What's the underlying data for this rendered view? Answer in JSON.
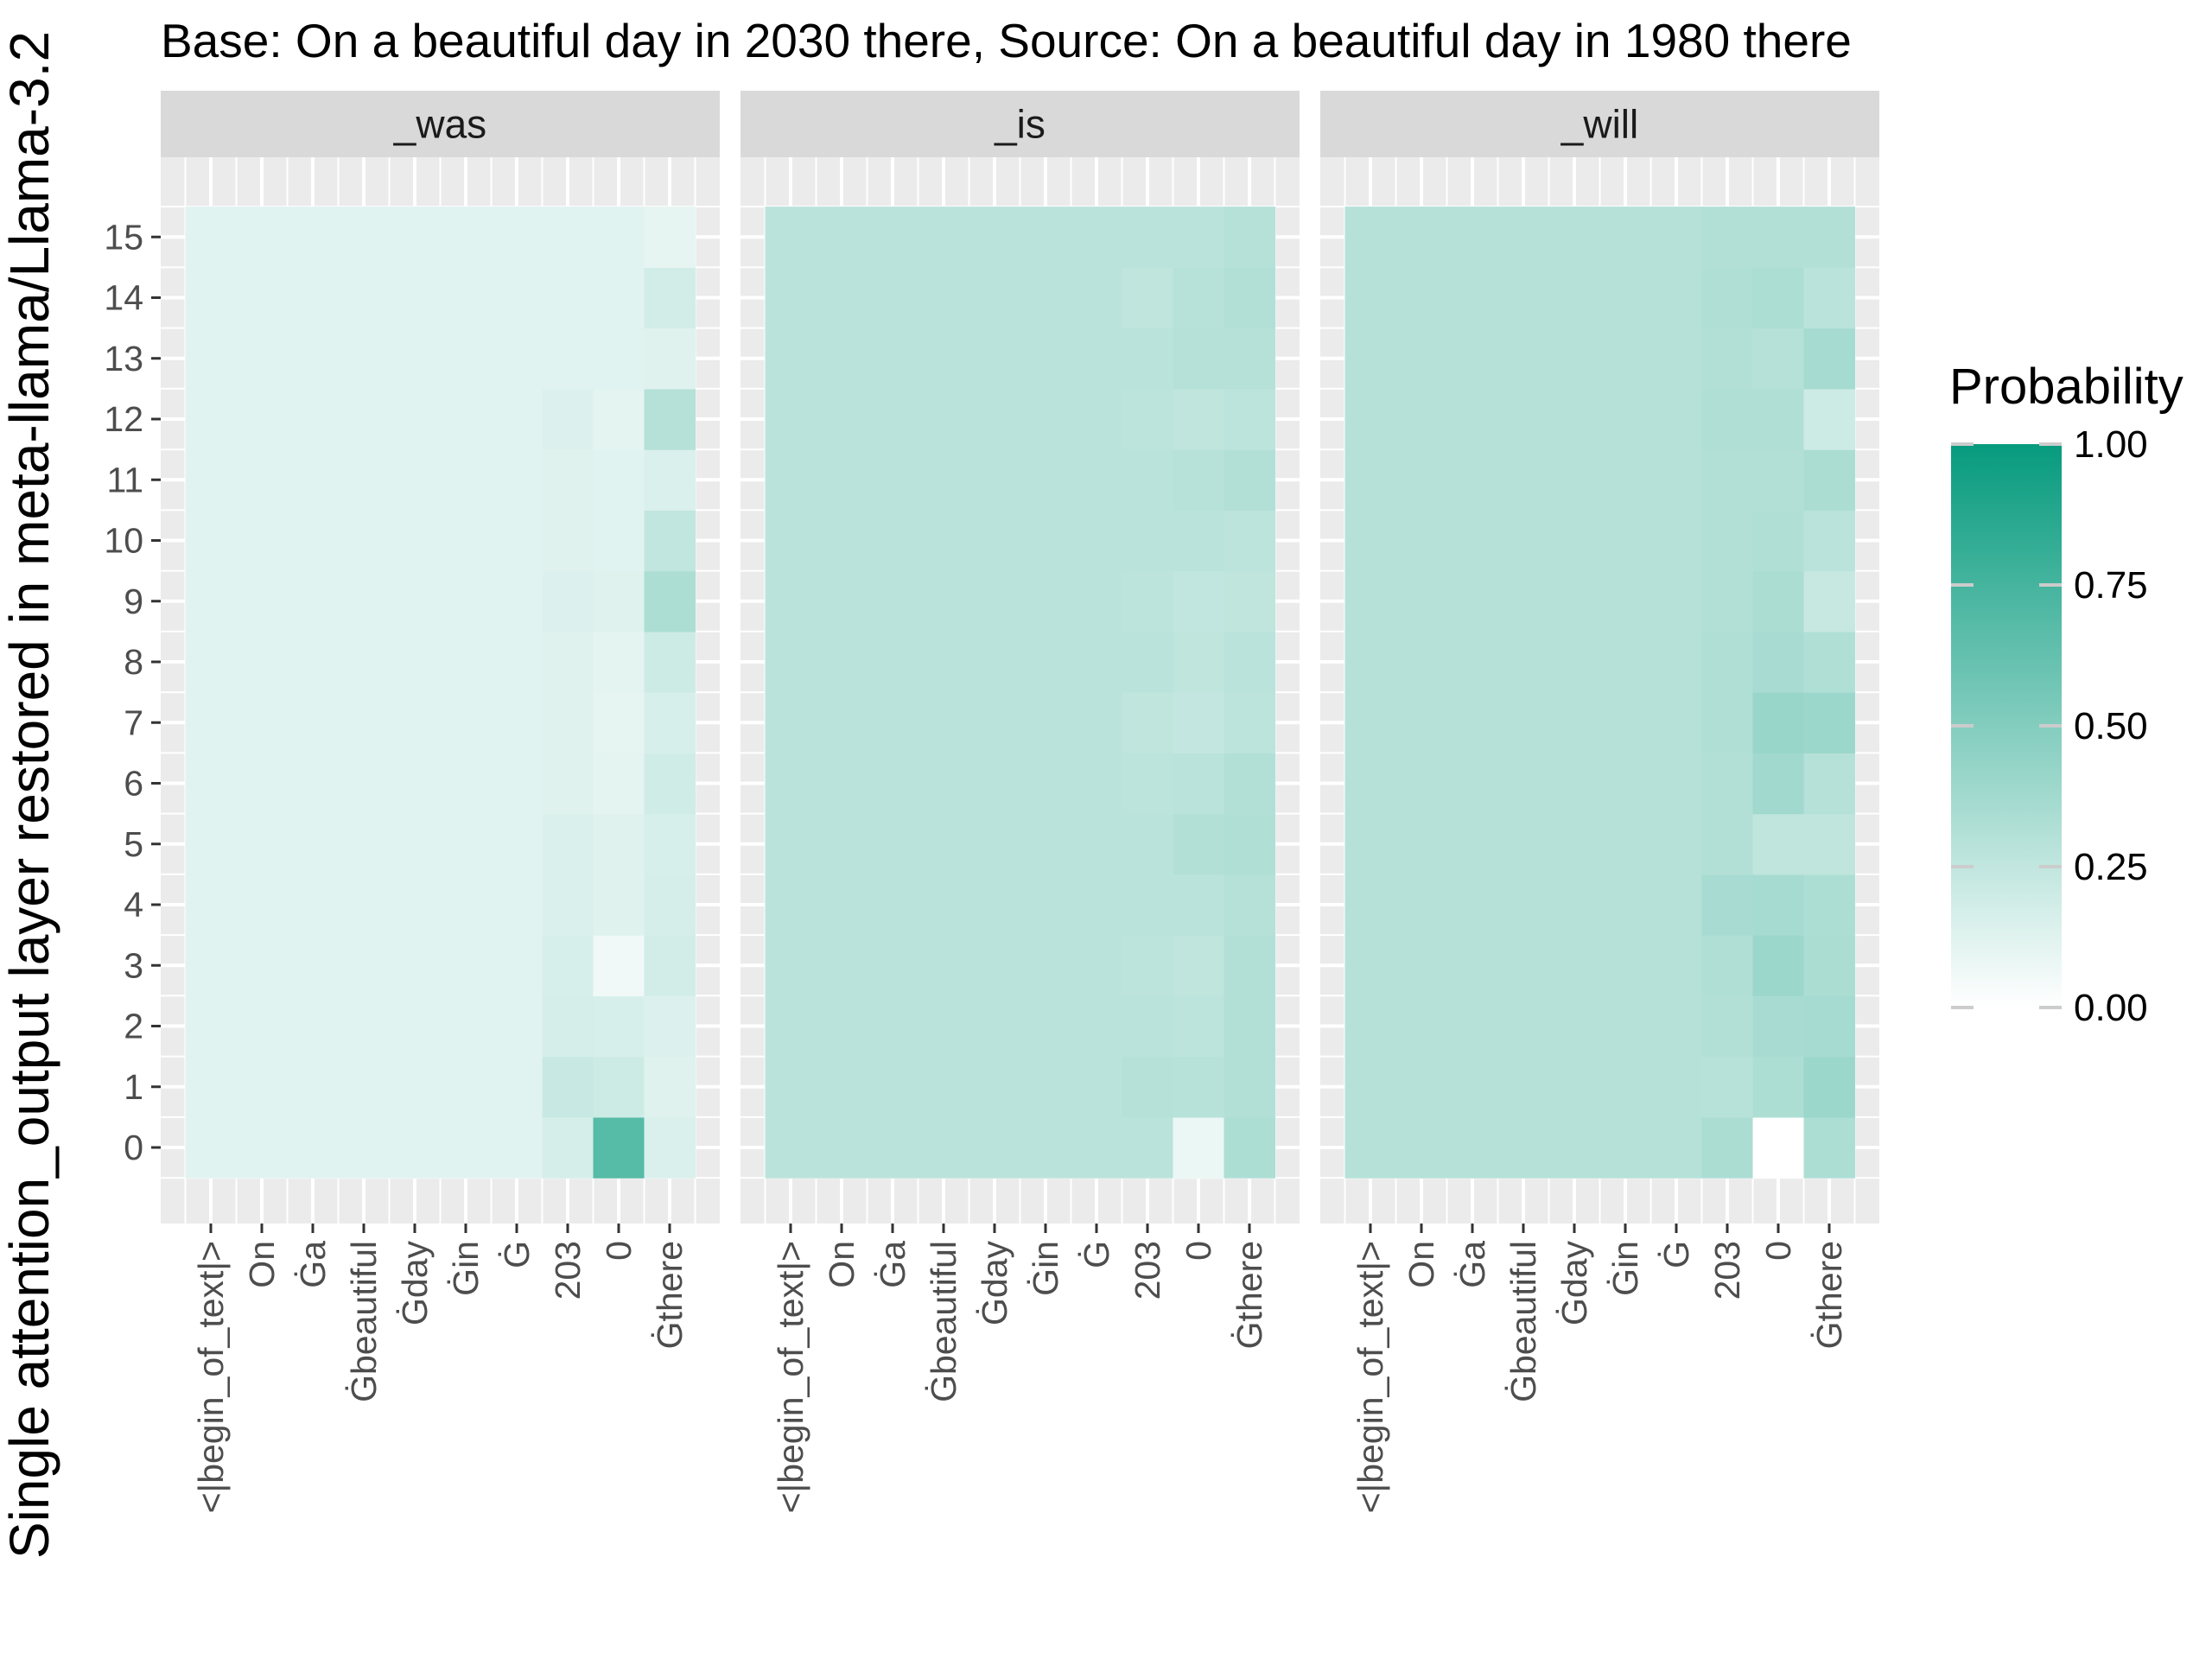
{
  "chart_data": {
    "type": "heatmap",
    "title": "Base: On a beautiful day in 2030 there, Source: On a beautiful day in 1980 there",
    "ylabel": "Single attention_output layer restored in meta-llama/Llama-3.2",
    "xlabel": "",
    "x_categories": [
      "<|begin_of_text|>",
      "On",
      "Ġa",
      "Ġbeautiful",
      "Ġday",
      "Ġin",
      "Ġ",
      "203",
      "0",
      "Ġthere"
    ],
    "y_categories": [
      "0",
      "1",
      "2",
      "3",
      "4",
      "5",
      "6",
      "7",
      "8",
      "9",
      "10",
      "11",
      "12",
      "13",
      "14",
      "15"
    ],
    "facets": [
      {
        "label": "_was",
        "base": 0.12,
        "values_last3": [
          [
            0.17,
            0.68,
            0.15
          ],
          [
            0.22,
            0.2,
            0.13
          ],
          [
            0.17,
            0.16,
            0.14
          ],
          [
            0.16,
            0.06,
            0.18
          ],
          [
            0.15,
            0.13,
            0.17
          ],
          [
            0.15,
            0.13,
            0.16
          ],
          [
            0.13,
            0.11,
            0.19
          ],
          [
            0.13,
            0.1,
            0.16
          ],
          [
            0.13,
            0.11,
            0.2
          ],
          [
            0.14,
            0.13,
            0.33
          ],
          [
            0.13,
            0.12,
            0.25
          ],
          [
            0.13,
            0.12,
            0.15
          ],
          [
            0.14,
            0.11,
            0.3
          ],
          [
            0.12,
            0.12,
            0.13
          ],
          [
            0.12,
            0.12,
            0.18
          ],
          [
            0.12,
            0.12,
            0.1
          ]
        ]
      },
      {
        "label": "_is",
        "base": 0.28,
        "values_last3": [
          [
            0.28,
            0.08,
            0.33
          ],
          [
            0.3,
            0.29,
            0.31
          ],
          [
            0.28,
            0.27,
            0.31
          ],
          [
            0.27,
            0.26,
            0.31
          ],
          [
            0.28,
            0.28,
            0.3
          ],
          [
            0.28,
            0.31,
            0.32
          ],
          [
            0.27,
            0.28,
            0.31
          ],
          [
            0.26,
            0.24,
            0.27
          ],
          [
            0.28,
            0.26,
            0.28
          ],
          [
            0.27,
            0.25,
            0.26
          ],
          [
            0.28,
            0.28,
            0.27
          ],
          [
            0.28,
            0.29,
            0.31
          ],
          [
            0.27,
            0.26,
            0.27
          ],
          [
            0.28,
            0.3,
            0.3
          ],
          [
            0.26,
            0.29,
            0.31
          ],
          [
            0.28,
            0.28,
            0.3
          ]
        ]
      },
      {
        "label": "_will",
        "base": 0.3,
        "values_last3": [
          [
            0.34,
            0.0,
            0.33
          ],
          [
            0.29,
            0.33,
            0.4
          ],
          [
            0.31,
            0.35,
            0.36
          ],
          [
            0.32,
            0.4,
            0.34
          ],
          [
            0.35,
            0.36,
            0.33
          ],
          [
            0.31,
            0.26,
            0.26
          ],
          [
            0.31,
            0.38,
            0.3
          ],
          [
            0.32,
            0.41,
            0.4
          ],
          [
            0.32,
            0.35,
            0.32
          ],
          [
            0.31,
            0.34,
            0.23
          ],
          [
            0.31,
            0.32,
            0.28
          ],
          [
            0.31,
            0.31,
            0.34
          ],
          [
            0.32,
            0.32,
            0.2
          ],
          [
            0.31,
            0.3,
            0.36
          ],
          [
            0.32,
            0.33,
            0.28
          ],
          [
            0.31,
            0.31,
            0.31
          ]
        ]
      }
    ],
    "legend": {
      "title": "Probability",
      "ticks": [
        1.0,
        0.75,
        0.5,
        0.25,
        0.0
      ],
      "tick_labels": [
        "1.00",
        "0.75",
        "0.50",
        "0.25",
        "0.00"
      ],
      "low_color": "#ffffff",
      "high_color": "#079b7e",
      "placement": "right"
    },
    "panel_background": "#ebebeb",
    "strip_background": "#d9d9d9",
    "grid": true
  }
}
